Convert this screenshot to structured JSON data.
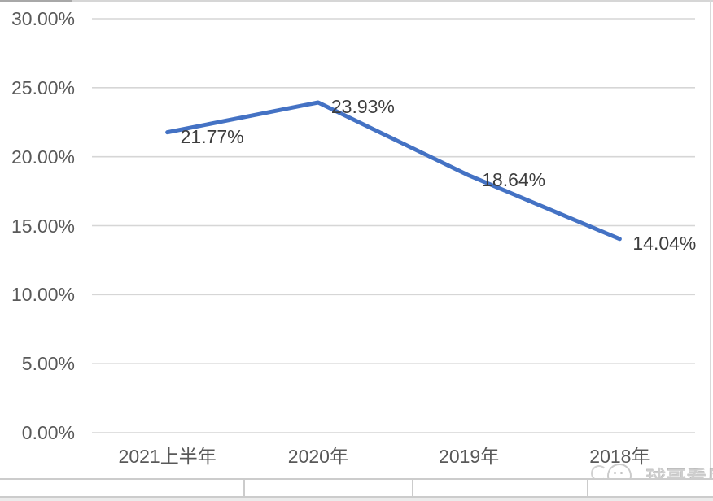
{
  "chart_data": {
    "type": "line",
    "title": "",
    "xlabel": "",
    "ylabel": "",
    "categories": [
      "2021上半年",
      "2020年",
      "2019年",
      "2018年"
    ],
    "series": [
      {
        "name": "",
        "values": [
          21.77,
          23.93,
          18.64,
          14.04
        ],
        "data_labels": [
          "21.77%",
          "23.93%",
          "18.64%",
          "14.04%"
        ],
        "color": "#4472C4"
      }
    ],
    "ylim": [
      0,
      30
    ],
    "y_ticks": [
      {
        "label": "30.00%",
        "value": 30
      },
      {
        "label": "25.00%",
        "value": 25
      },
      {
        "label": "20.00%",
        "value": 20
      },
      {
        "label": "15.00%",
        "value": 15
      },
      {
        "label": "10.00%",
        "value": 10
      },
      {
        "label": "5.00%",
        "value": 5
      },
      {
        "label": "0.00%",
        "value": 0
      }
    ],
    "grid": true,
    "gridline_color": "#d6d6d6",
    "legend": "none"
  },
  "watermark": {
    "text": "球哥看风",
    "icon": "mascot-face-icon"
  },
  "colors": {
    "axis_text": "#595959",
    "data_label_text": "#3d3d3d",
    "line": "#4472C4",
    "gridline": "#d6d6d6",
    "table_border": "#cccccc"
  }
}
